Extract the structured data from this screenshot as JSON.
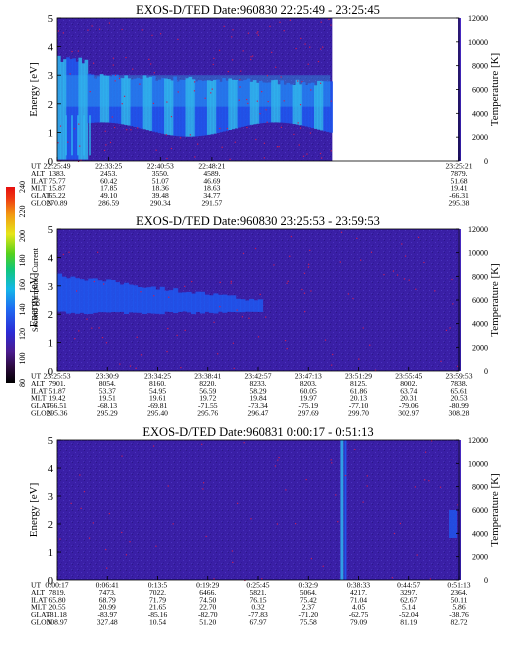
{
  "chart_data": [
    {
      "type": "heatmap",
      "title": "EXOS-D/TED   Date:960830  22:25:49 - 23:25:45",
      "ylabel": "Energy [eV]",
      "y2label": "Temperature [K]",
      "y_ticks": [
        0,
        1,
        2,
        3,
        4,
        5
      ],
      "ylim": [
        0,
        5
      ],
      "y2_ticks": [
        0,
        2000,
        4000,
        6000,
        8000,
        10000,
        12000
      ],
      "y2lim": [
        0,
        12000
      ],
      "data_extent": [
        0,
        0.685
      ],
      "table_rows": [
        "UT",
        "ALT",
        "ILAT",
        "MLT",
        "GLAT",
        "GLON"
      ],
      "columns": [
        {
          "UT": "22:25:49",
          "ALT": "1383.",
          "ILAT": "75.77",
          "MLT": "15.87",
          "GLAT": "65.22",
          "GLON": "270.89"
        },
        {
          "UT": "22:33:25",
          "ALT": "2453.",
          "ILAT": "60.42",
          "MLT": "17.85",
          "GLAT": "49.10",
          "GLON": "286.59"
        },
        {
          "UT": "22:40:53",
          "ALT": "3550.",
          "ILAT": "51.07",
          "MLT": "18.36",
          "GLAT": "39.48",
          "GLON": "290.34"
        },
        {
          "UT": "22:48:21",
          "ALT": "4589.",
          "ILAT": "46.69",
          "MLT": "18.63",
          "GLAT": "34.77",
          "GLON": "291.57"
        },
        {
          "UT": "23:25:21",
          "ALT": "7879.",
          "ILAT": "51.68",
          "MLT": "19.41",
          "GLAT": "-66.31",
          "GLON": "295.38"
        }
      ]
    },
    {
      "type": "heatmap",
      "title": "EXOS-D/TED   Date:960830  23:25:53 - 23:59:53",
      "ylabel": "Energy [eV]",
      "y2label": "Temperature [K]",
      "y_ticks": [
        0,
        1,
        2,
        3,
        4,
        5
      ],
      "ylim": [
        0,
        5
      ],
      "y2_ticks": [
        0,
        2000,
        4000,
        6000,
        8000,
        10000,
        12000
      ],
      "y2lim": [
        0,
        12000
      ],
      "colorbar": {
        "label": "Second Harmonic Current",
        "ticks": [
          80,
          100,
          120,
          140,
          160,
          180,
          200,
          220,
          240
        ],
        "range": [
          80,
          240
        ]
      },
      "table_rows": [
        "UT",
        "ALT",
        "ILAT",
        "MLT",
        "GLAT",
        "GLON"
      ],
      "columns": [
        {
          "UT": "23:25:53",
          "ALT": "7901.",
          "ILAT": "51.87",
          "MLT": "19.42",
          "GLAT": "-66.51",
          "GLON": "295.36"
        },
        {
          "UT": "23:30:9",
          "ALT": "8054.",
          "ILAT": "53.37",
          "MLT": "19.51",
          "GLAT": "-68.13",
          "GLON": "295.29"
        },
        {
          "UT": "23:34:25",
          "ALT": "8160.",
          "ILAT": "54.95",
          "MLT": "19.61",
          "GLAT": "-69.81",
          "GLON": "295.40"
        },
        {
          "UT": "23:38:41",
          "ALT": "8220.",
          "ILAT": "56.59",
          "MLT": "19.72",
          "GLAT": "-71.55",
          "GLON": "295.76"
        },
        {
          "UT": "23:42:57",
          "ALT": "8233.",
          "ILAT": "58.29",
          "MLT": "19.84",
          "GLAT": "-73.34",
          "GLON": "296.47"
        },
        {
          "UT": "23:47:13",
          "ALT": "8203.",
          "ILAT": "60.05",
          "MLT": "19.97",
          "GLAT": "-75.19",
          "GLON": "297.69"
        },
        {
          "UT": "23:51:29",
          "ALT": "8125.",
          "ILAT": "61.86",
          "MLT": "20.13",
          "GLAT": "-77.10",
          "GLON": "299.70"
        },
        {
          "UT": "23:55:45",
          "ALT": "8002.",
          "ILAT": "63.74",
          "MLT": "20.31",
          "GLAT": "-79.06",
          "GLON": "302.97"
        },
        {
          "UT": "23:59:53",
          "ALT": "7838.",
          "ILAT": "65.61",
          "MLT": "20.53",
          "GLAT": "-80.99",
          "GLON": "308.28"
        }
      ]
    },
    {
      "type": "heatmap",
      "title": "EXOS-D/TED   Date:960831  0:00:17 - 0:51:13",
      "ylabel": "Energy [eV]",
      "y2label": "Temperature [K]",
      "y_ticks": [
        0,
        1,
        2,
        3,
        4,
        5
      ],
      "ylim": [
        0,
        5
      ],
      "y2_ticks": [
        0,
        2000,
        4000,
        6000,
        8000,
        10000,
        12000
      ],
      "y2lim": [
        0,
        12000
      ],
      "table_rows": [
        "UT",
        "ALT",
        "ILAT",
        "MLT",
        "GLAT",
        "GLON"
      ],
      "columns": [
        {
          "UT": "0:00:17",
          "ALT": "7819.",
          "ILAT": "65.80",
          "MLT": "20.55",
          "GLAT": "-81.18",
          "GLON": "308.97"
        },
        {
          "UT": "0:06:41",
          "ALT": "7473.",
          "ILAT": "68.79",
          "MLT": "20.99",
          "GLAT": "-83.97",
          "GLON": "327.48"
        },
        {
          "UT": "0:13:5",
          "ALT": "7022.",
          "ILAT": "71.79",
          "MLT": "21.65",
          "GLAT": "-85.16",
          "GLON": "10.54"
        },
        {
          "UT": "0:19:29",
          "ALT": "6466.",
          "ILAT": "74.50",
          "MLT": "22.70",
          "GLAT": "-82.70",
          "GLON": "51.20"
        },
        {
          "UT": "0:25:45",
          "ALT": "5821.",
          "ILAT": "76.15",
          "MLT": "0.32",
          "GLAT": "-77.83",
          "GLON": "67.97"
        },
        {
          "UT": "0:32:9",
          "ALT": "5064.",
          "ILAT": "75.42",
          "MLT": "2.37",
          "GLAT": "-71.20",
          "GLON": "75.58"
        },
        {
          "UT": "0:38:33",
          "ALT": "4217.",
          "ILAT": "71.04",
          "MLT": "4.05",
          "GLAT": "-62.75",
          "GLON": "79.09"
        },
        {
          "UT": "0:44:57",
          "ALT": "3297.",
          "ILAT": "62.67",
          "MLT": "5.14",
          "GLAT": "-52.04",
          "GLON": "81.19"
        },
        {
          "UT": "0:51:13",
          "ALT": "2364.",
          "ILAT": "50.11",
          "MLT": "5.86",
          "GLAT": "-38.76",
          "GLON": "82.72"
        }
      ]
    }
  ],
  "colors": {
    "background_spectrum": "#3a1fa6",
    "band": "#1e58f0",
    "band_bright": "#2fb6f0",
    "noise_dot": "#c81e5a",
    "temperature_strip": "#3b1fb0"
  }
}
